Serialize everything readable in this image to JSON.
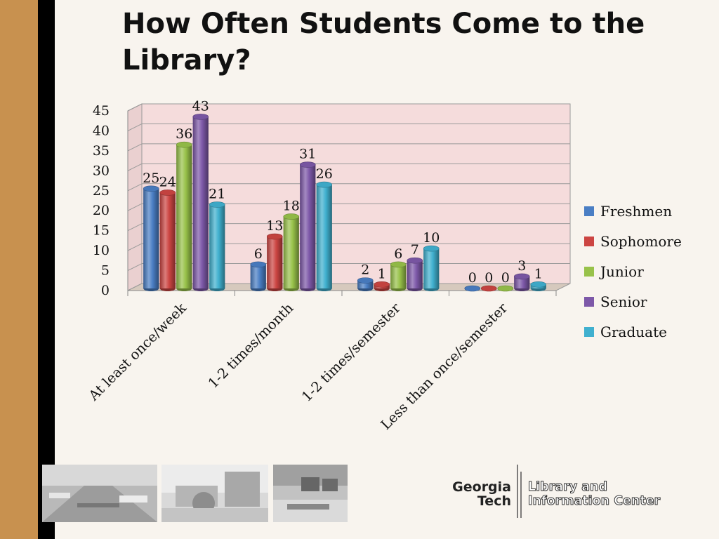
{
  "slide": {
    "title": "How Often Students Come to the Library?",
    "logo_line1": "Georgia",
    "logo_line2": "Tech",
    "logo_text_line1": "Library and",
    "logo_text_line2": "Information Center"
  },
  "chart_data": {
    "type": "bar",
    "title": "",
    "categories": [
      "At least once/week",
      "1-2 times/month",
      "1-2 times/semester",
      "Less than once/semester"
    ],
    "series": [
      {
        "name": "Freshmen",
        "color": "#4a7ec4",
        "values": [
          25,
          6,
          2,
          0
        ]
      },
      {
        "name": "Sophomore",
        "color": "#cc4542",
        "values": [
          24,
          13,
          1,
          0
        ]
      },
      {
        "name": "Junior",
        "color": "#98c24a",
        "values": [
          36,
          18,
          6,
          0
        ]
      },
      {
        "name": "Senior",
        "color": "#7d58a8",
        "values": [
          43,
          31,
          7,
          3
        ]
      },
      {
        "name": "Graduate",
        "color": "#40b0cf",
        "values": [
          21,
          26,
          10,
          1
        ]
      }
    ],
    "yticks": [
      "0",
      "5",
      "10",
      "15",
      "20",
      "25",
      "30",
      "35",
      "40",
      "45"
    ],
    "ylim": [
      0,
      45
    ],
    "legend_position": "right",
    "grid": true,
    "wall_color": "#f5dcdc"
  }
}
